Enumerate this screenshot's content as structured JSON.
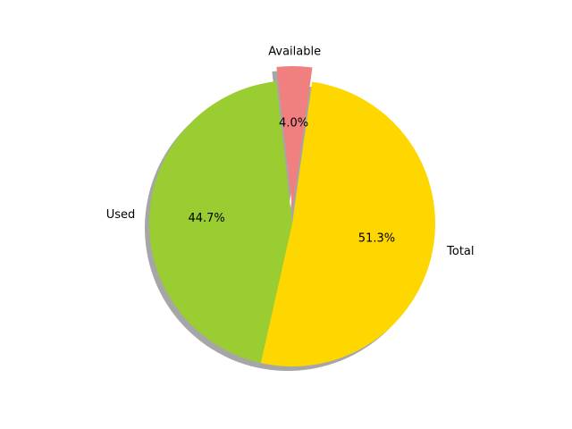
{
  "chart_data": {
    "type": "pie",
    "title": "",
    "slices": [
      {
        "label": "Available",
        "value": 4.0,
        "pct_label": "4.0%",
        "color": "#f08080",
        "exploded": true
      },
      {
        "label": "Used",
        "value": 44.7,
        "pct_label": "44.7%",
        "color": "#9acd32",
        "exploded": false
      },
      {
        "label": "Total",
        "value": 51.3,
        "pct_label": "51.3%",
        "color": "#ffd700",
        "exploded": false
      }
    ],
    "shadow": true,
    "legend": "none"
  }
}
